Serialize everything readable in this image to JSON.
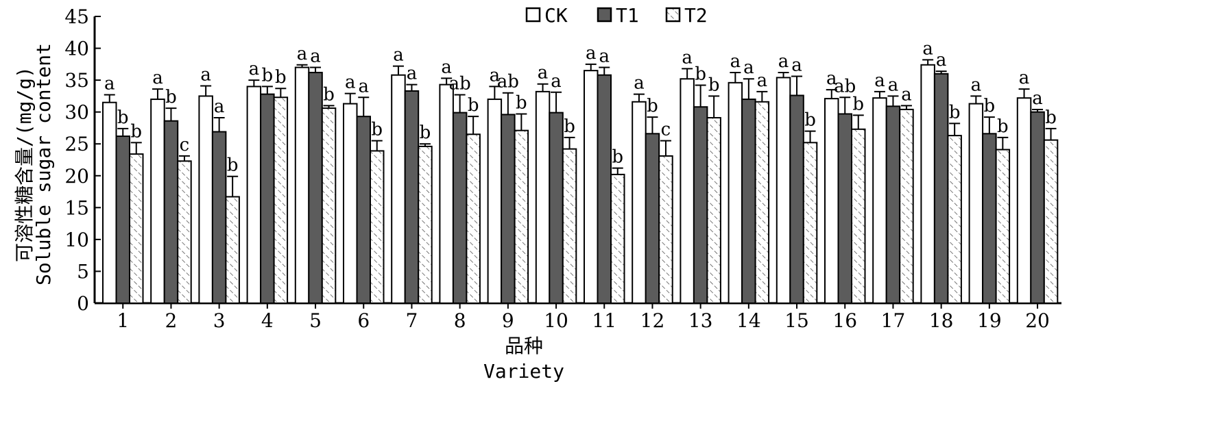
{
  "chart_data": {
    "type": "bar",
    "xlabel_cn": "品种",
    "xlabel_en": "Variety",
    "ylabel_cn": "可溶性糖含量/(mg/g)",
    "ylabel_en": "Soluble sugar content",
    "ylim": [
      0,
      45
    ],
    "yticks": [
      "0",
      "5",
      "10",
      "15",
      "20",
      "25",
      "30",
      "35",
      "40",
      "45"
    ],
    "categories": [
      "1",
      "2",
      "3",
      "4",
      "5",
      "6",
      "7",
      "8",
      "9",
      "10",
      "11",
      "12",
      "13",
      "14",
      "15",
      "16",
      "17",
      "18",
      "19",
      "20"
    ],
    "legend_position": "top-center",
    "series": [
      {
        "name": "CK",
        "fill": "white",
        "values": [
          31.5,
          32.0,
          32.5,
          34.0,
          37.0,
          31.3,
          35.8,
          34.3,
          32.0,
          33.2,
          36.5,
          31.6,
          35.2,
          34.6,
          35.4,
          32.1,
          32.2,
          37.4,
          31.3,
          32.2
        ],
        "errors": [
          1.2,
          1.6,
          1.6,
          1.0,
          0.4,
          1.6,
          1.4,
          1.0,
          2.0,
          1.2,
          1.0,
          1.2,
          1.6,
          1.6,
          0.8,
          1.4,
          1.0,
          0.8,
          1.2,
          1.4
        ],
        "labels": [
          "a",
          "a",
          "a",
          "a",
          "a",
          "a",
          "a",
          "a",
          "a",
          "a",
          "a",
          "a",
          "a",
          "a",
          "a",
          "a",
          "a",
          "a",
          "a",
          "a"
        ]
      },
      {
        "name": "T1",
        "fill": "gray",
        "values": [
          26.2,
          28.6,
          26.9,
          32.8,
          36.2,
          29.3,
          33.3,
          29.9,
          29.6,
          29.9,
          35.8,
          26.6,
          30.8,
          32.0,
          32.6,
          29.7,
          30.9,
          36.0,
          26.6,
          30.0
        ],
        "errors": [
          1.2,
          2.0,
          2.2,
          1.2,
          0.8,
          3.0,
          1.0,
          2.8,
          3.4,
          3.2,
          1.2,
          2.6,
          3.4,
          3.2,
          3.0,
          2.6,
          1.6,
          0.4,
          2.6,
          0.4
        ],
        "labels": [
          "b",
          "b",
          "a",
          "b",
          "a",
          "a",
          "a",
          "ab",
          "ab",
          "a",
          "a",
          "b",
          "b",
          "a",
          "a",
          "ab",
          "a",
          "a",
          "b",
          "a"
        ]
      },
      {
        "name": "T2",
        "fill": "hatched",
        "values": [
          23.4,
          22.3,
          16.7,
          32.3,
          30.6,
          23.9,
          24.6,
          26.5,
          27.1,
          24.2,
          20.2,
          23.1,
          29.1,
          31.6,
          25.2,
          27.3,
          30.4,
          26.3,
          24.1,
          25.6
        ],
        "errors": [
          1.8,
          0.8,
          3.2,
          1.4,
          0.4,
          1.6,
          0.4,
          2.8,
          2.6,
          1.8,
          1.0,
          2.4,
          3.4,
          1.6,
          1.8,
          2.2,
          0.6,
          1.9,
          1.9,
          1.8
        ],
        "labels": [
          "b",
          "c",
          "b",
          "b",
          "b",
          "b",
          "b",
          "b",
          "b",
          "b",
          "b",
          "c",
          "b",
          "a",
          "b",
          "b",
          "a",
          "b",
          "b",
          "b"
        ]
      }
    ]
  }
}
